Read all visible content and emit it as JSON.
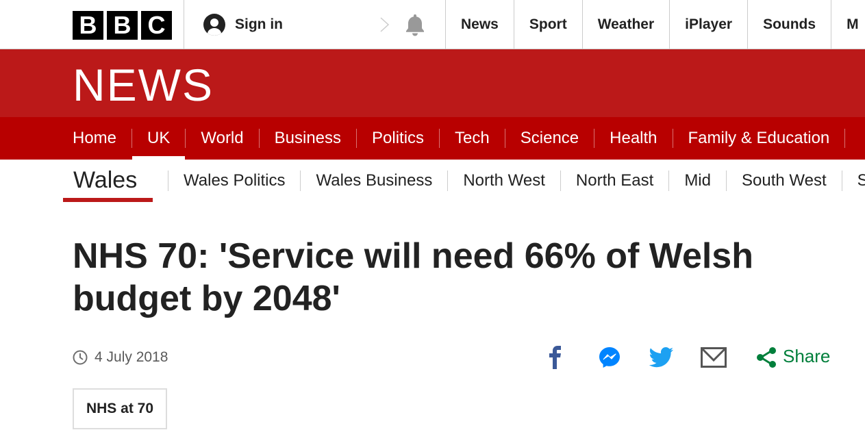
{
  "topbar": {
    "logo_letters": [
      "B",
      "B",
      "C"
    ],
    "sign_in": "Sign in",
    "nav": [
      "News",
      "Sport",
      "Weather",
      "iPlayer",
      "Sounds",
      "M"
    ]
  },
  "masthead": {
    "wordmark": "NEWS"
  },
  "main_nav": [
    {
      "label": "Home",
      "active": false
    },
    {
      "label": "UK",
      "active": true
    },
    {
      "label": "World",
      "active": false
    },
    {
      "label": "Business",
      "active": false
    },
    {
      "label": "Politics",
      "active": false
    },
    {
      "label": "Tech",
      "active": false
    },
    {
      "label": "Science",
      "active": false
    },
    {
      "label": "Health",
      "active": false
    },
    {
      "label": "Family & Education",
      "active": false
    }
  ],
  "sub_nav": {
    "current": "Wales",
    "items": [
      "Wales Politics",
      "Wales Business",
      "North West",
      "North East",
      "Mid",
      "South West",
      "So"
    ]
  },
  "article": {
    "headline": "NHS 70: 'Service will need 66% of Welsh budget by 2048'",
    "date": "4 July 2018",
    "share_label": "Share",
    "share_icons": [
      "facebook-icon",
      "messenger-icon",
      "twitter-icon",
      "email-icon",
      "share-icon"
    ],
    "tag": "NHS at 70"
  },
  "colors": {
    "brand_red": "#bb1919",
    "nav_red": "#b80000",
    "share_green": "#007f3b",
    "facebook": "#3b5998",
    "messenger": "#0084ff",
    "twitter": "#1da1f2",
    "email": "#555555"
  }
}
